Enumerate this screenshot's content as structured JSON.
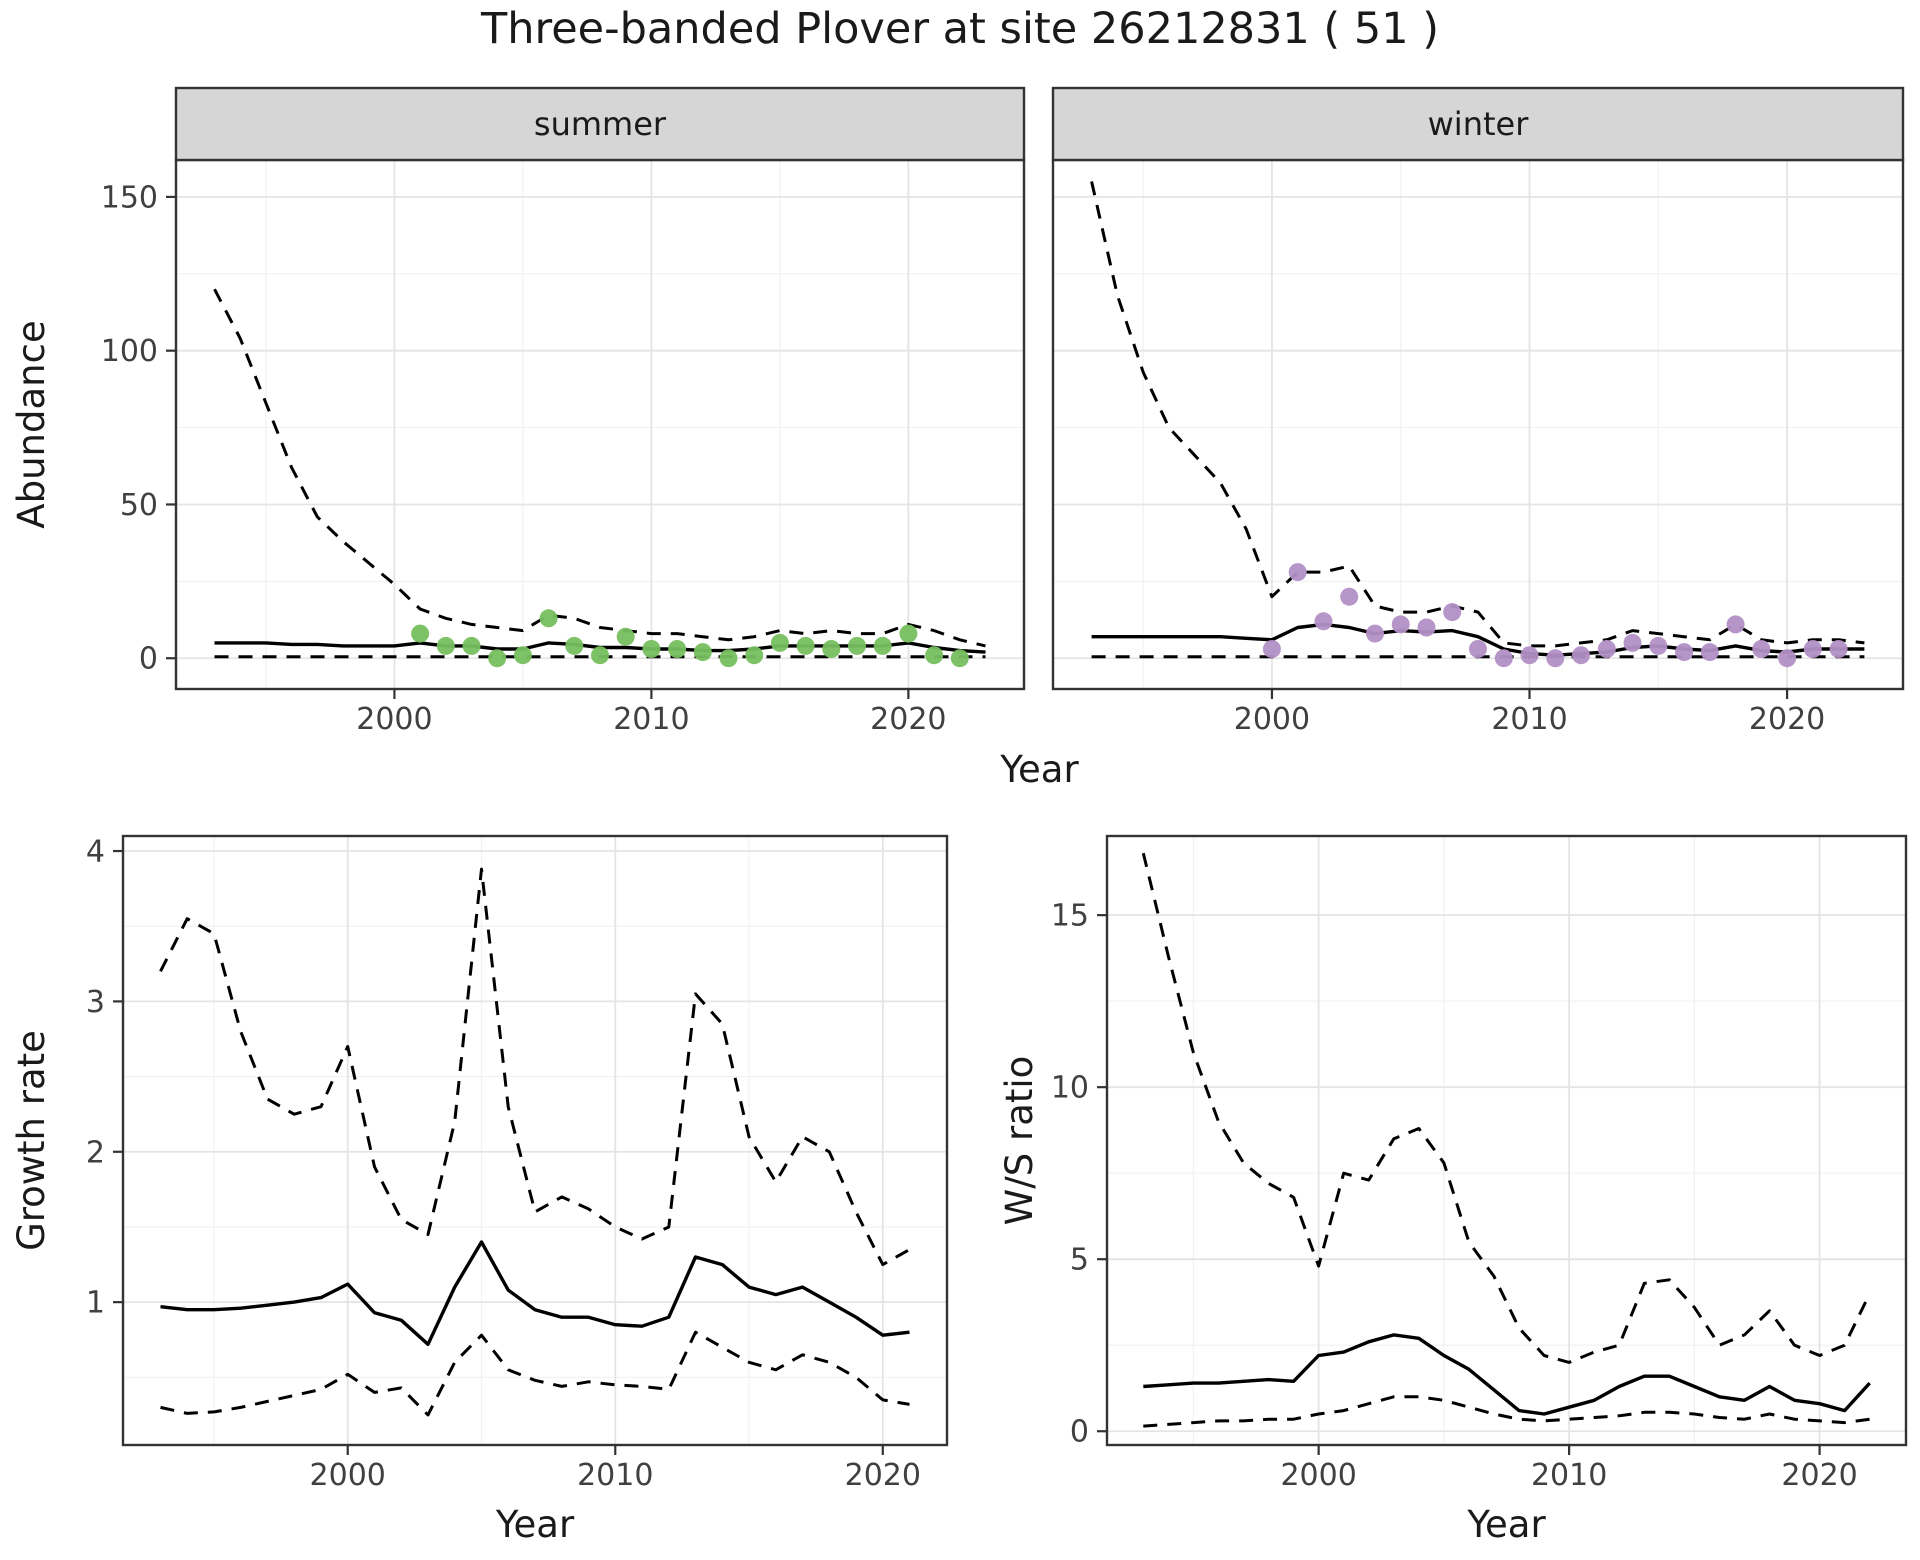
{
  "title": "Three-banded Plover at site 26212831 ( 51 )",
  "chart_data": [
    {
      "id": "abundance",
      "type": "line",
      "xlabel": "Year",
      "ylabel": "Abundance",
      "xlim": [
        1991.5,
        2024.5
      ],
      "ylim": [
        -10,
        162
      ],
      "xticks": [
        2000,
        2010,
        2020
      ],
      "yticks": [
        0,
        50,
        100,
        150
      ],
      "grid": "major+minor",
      "legend": "none",
      "line_color": "#000000",
      "ci_style": "dashed",
      "facets": [
        {
          "label": "summer",
          "point_color": "#77bf5f",
          "years": [
            1993,
            1994,
            1995,
            1996,
            1997,
            1998,
            1999,
            2000,
            2001,
            2002,
            2003,
            2004,
            2005,
            2006,
            2007,
            2008,
            2009,
            2010,
            2011,
            2012,
            2013,
            2014,
            2015,
            2016,
            2017,
            2018,
            2019,
            2020,
            2021,
            2022,
            2023
          ],
          "upper_ci": [
            120,
            104,
            83,
            62,
            46,
            38,
            31,
            24,
            16,
            13,
            11,
            10,
            9,
            14,
            13,
            10,
            9,
            8,
            8,
            7,
            6,
            7,
            9,
            8,
            9,
            8,
            8,
            11,
            9,
            6,
            4
          ],
          "median": [
            5,
            5,
            5,
            4.5,
            4.5,
            4,
            4,
            4,
            5,
            4,
            4,
            3,
            3,
            5,
            4.5,
            3.5,
            3.5,
            3,
            3,
            2.5,
            2.5,
            3,
            4,
            4,
            4,
            4,
            4,
            5,
            3.5,
            2.5,
            2
          ],
          "lower_ci": [
            0.5,
            0.5,
            0.5,
            0.5,
            0.5,
            0.5,
            0.5,
            0.5,
            0.5,
            0.5,
            0.5,
            0.5,
            0.5,
            0.5,
            0.5,
            0.5,
            0.5,
            0.5,
            0.5,
            0.5,
            0.5,
            0.5,
            0.5,
            0.5,
            0.5,
            0.5,
            0.5,
            0.5,
            0.5,
            0.5,
            0.5
          ],
          "points": {
            "years": [
              2001,
              2002,
              2003,
              2004,
              2005,
              2006,
              2007,
              2008,
              2009,
              2010,
              2011,
              2012,
              2013,
              2014,
              2015,
              2016,
              2017,
              2018,
              2019,
              2020,
              2021,
              2022
            ],
            "values": [
              8,
              4,
              4,
              0,
              1,
              13,
              4,
              1,
              7,
              3,
              3,
              2,
              0,
              1,
              5,
              4,
              3,
              4,
              4,
              8,
              1,
              0
            ]
          }
        },
        {
          "label": "winter",
          "point_color": "#b28fc5",
          "years": [
            1993,
            1994,
            1995,
            1996,
            1997,
            1998,
            1999,
            2000,
            2001,
            2002,
            2003,
            2004,
            2005,
            2006,
            2007,
            2008,
            2009,
            2010,
            2011,
            2012,
            2013,
            2014,
            2015,
            2016,
            2017,
            2018,
            2019,
            2020,
            2021,
            2022,
            2023
          ],
          "upper_ci": [
            155,
            118,
            93,
            75,
            66,
            57,
            42,
            20,
            28,
            28,
            30,
            17,
            15,
            15,
            17,
            15,
            5,
            4,
            4,
            5,
            6,
            9,
            8,
            7,
            6,
            11,
            6,
            5,
            6,
            6,
            5
          ],
          "median": [
            7,
            7,
            7,
            7,
            7,
            7,
            6.5,
            6,
            10,
            11,
            10,
            8,
            9,
            8.5,
            9,
            7,
            3,
            1.5,
            1,
            1.5,
            2,
            3.5,
            4,
            3,
            2.5,
            4,
            2.5,
            2,
            3,
            3,
            3
          ],
          "lower_ci": [
            0.5,
            0.5,
            0.5,
            0.5,
            0.5,
            0.5,
            0.5,
            0.5,
            0.5,
            0.5,
            0.5,
            0.5,
            0.5,
            0.5,
            0.5,
            0.5,
            0.5,
            0.5,
            0.5,
            0.5,
            0.5,
            0.5,
            0.5,
            0.5,
            0.5,
            0.5,
            0.5,
            0.5,
            0.5,
            0.5,
            0.5
          ],
          "points": {
            "years": [
              2000,
              2001,
              2002,
              2003,
              2004,
              2005,
              2006,
              2007,
              2008,
              2009,
              2010,
              2011,
              2012,
              2013,
              2014,
              2015,
              2016,
              2017,
              2018,
              2019,
              2020,
              2021,
              2022
            ],
            "values": [
              3,
              28,
              12,
              20,
              8,
              11,
              10,
              15,
              3,
              0,
              1,
              0,
              1,
              3,
              5,
              4,
              2,
              2,
              11,
              3,
              0,
              3,
              3
            ]
          }
        }
      ]
    },
    {
      "id": "growth-rate",
      "type": "line",
      "xlabel": "Year",
      "ylabel": "Growth rate",
      "xlim": [
        1991.6,
        2022.4
      ],
      "ylim": [
        0.05,
        4.1
      ],
      "xticks": [
        2000,
        2010,
        2020
      ],
      "yticks": [
        1,
        2,
        3,
        4
      ],
      "grid": "major+minor",
      "legend": "none",
      "line_color": "#000000",
      "ci_style": "dashed",
      "years": [
        1993,
        1994,
        1995,
        1996,
        1997,
        1998,
        1999,
        2000,
        2001,
        2002,
        2003,
        2004,
        2005,
        2006,
        2007,
        2008,
        2009,
        2010,
        2011,
        2012,
        2013,
        2014,
        2015,
        2016,
        2017,
        2018,
        2019,
        2020,
        2021
      ],
      "upper_ci": [
        3.2,
        3.55,
        3.45,
        2.8,
        2.35,
        2.25,
        2.3,
        2.7,
        1.9,
        1.55,
        1.45,
        2.2,
        3.88,
        2.3,
        1.6,
        1.7,
        1.62,
        1.5,
        1.42,
        1.5,
        3.05,
        2.85,
        2.1,
        1.8,
        2.1,
        2.0,
        1.6,
        1.25,
        1.35
      ],
      "median": [
        0.97,
        0.95,
        0.95,
        0.96,
        0.98,
        1.0,
        1.03,
        1.12,
        0.93,
        0.88,
        0.72,
        1.1,
        1.4,
        1.08,
        0.95,
        0.9,
        0.9,
        0.85,
        0.84,
        0.9,
        1.3,
        1.25,
        1.1,
        1.05,
        1.1,
        1.0,
        0.9,
        0.78,
        0.8
      ],
      "lower_ci": [
        0.3,
        0.26,
        0.27,
        0.3,
        0.34,
        0.38,
        0.42,
        0.52,
        0.4,
        0.43,
        0.25,
        0.6,
        0.78,
        0.55,
        0.48,
        0.44,
        0.47,
        0.45,
        0.44,
        0.42,
        0.8,
        0.7,
        0.6,
        0.55,
        0.65,
        0.6,
        0.5,
        0.35,
        0.32
      ]
    },
    {
      "id": "ws-ratio",
      "type": "line",
      "xlabel": "Year",
      "ylabel": "W/S ratio",
      "xlim": [
        1991.55,
        2023.45
      ],
      "ylim": [
        -0.4,
        17.3
      ],
      "xticks": [
        2000,
        2010,
        2020
      ],
      "yticks": [
        0,
        5,
        10,
        15
      ],
      "grid": "major+minor",
      "legend": "none",
      "line_color": "#000000",
      "ci_style": "dashed",
      "years": [
        1993,
        1994,
        1995,
        1996,
        1997,
        1998,
        1999,
        2000,
        2001,
        2002,
        2003,
        2004,
        2005,
        2006,
        2007,
        2008,
        2009,
        2010,
        2011,
        2012,
        2013,
        2014,
        2015,
        2016,
        2017,
        2018,
        2019,
        2020,
        2021,
        2022
      ],
      "upper_ci": [
        16.8,
        13.8,
        11,
        9,
        7.8,
        7.2,
        6.8,
        4.8,
        7.5,
        7.3,
        8.5,
        8.8,
        7.8,
        5.5,
        4.5,
        3.0,
        2.2,
        2.0,
        2.3,
        2.5,
        4.3,
        4.4,
        3.6,
        2.5,
        2.8,
        3.5,
        2.5,
        2.2,
        2.5,
        4.0
      ],
      "median": [
        1.3,
        1.35,
        1.4,
        1.4,
        1.45,
        1.5,
        1.45,
        2.2,
        2.3,
        2.6,
        2.8,
        2.7,
        2.2,
        1.8,
        1.2,
        0.6,
        0.5,
        0.7,
        0.9,
        1.3,
        1.6,
        1.6,
        1.3,
        1.0,
        0.9,
        1.3,
        0.9,
        0.8,
        0.6,
        1.4
      ],
      "lower_ci": [
        0.15,
        0.2,
        0.25,
        0.3,
        0.3,
        0.35,
        0.35,
        0.5,
        0.6,
        0.8,
        1.0,
        1.0,
        0.9,
        0.7,
        0.5,
        0.35,
        0.3,
        0.35,
        0.4,
        0.45,
        0.55,
        0.55,
        0.5,
        0.4,
        0.35,
        0.5,
        0.35,
        0.3,
        0.25,
        0.35
      ]
    }
  ]
}
